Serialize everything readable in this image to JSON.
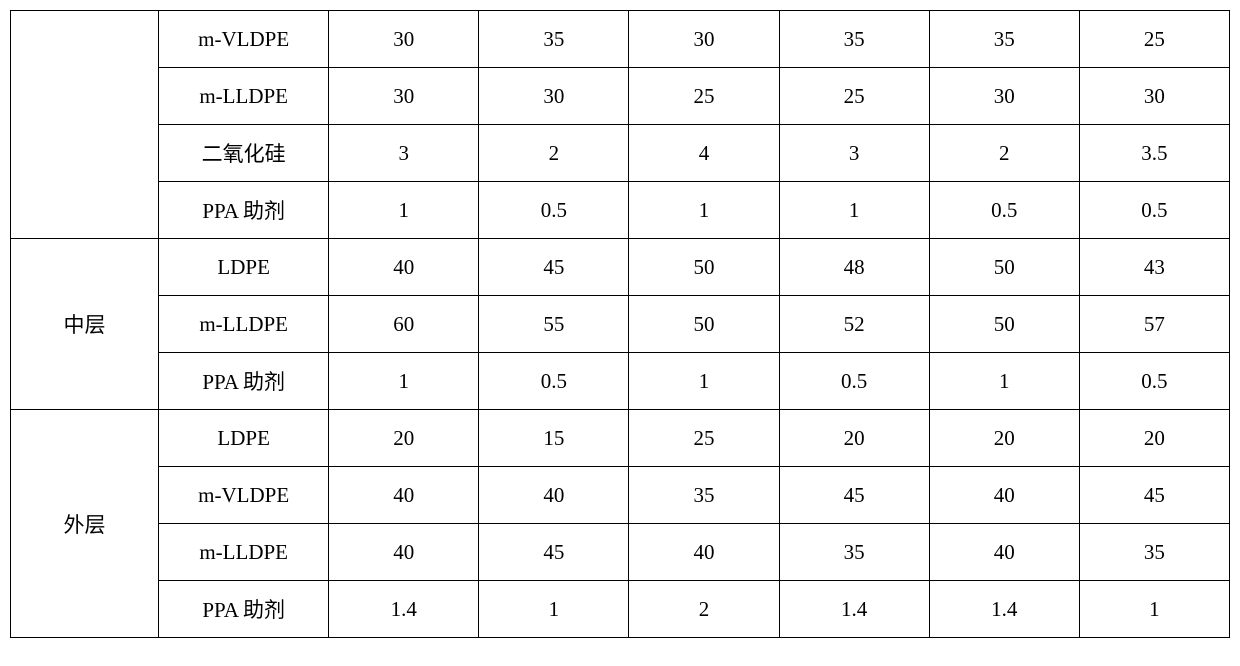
{
  "table": {
    "columns": [
      "group",
      "label",
      "c1",
      "c2",
      "c3",
      "c4",
      "c5",
      "c6"
    ],
    "col_widths": {
      "group": 148,
      "label": 170,
      "data": 150
    },
    "font_size": 21,
    "border_color": "#000000",
    "background_color": "#ffffff",
    "text_color": "#000000",
    "rows": [
      {
        "group": "",
        "group_rowspan": 4,
        "show_group": true,
        "label": "m-VLDPE",
        "c1": "30",
        "c2": "35",
        "c3": "30",
        "c4": "35",
        "c5": "35",
        "c6": "25"
      },
      {
        "group": "",
        "group_rowspan": 0,
        "show_group": false,
        "label": "m-LLDPE",
        "c1": "30",
        "c2": "30",
        "c3": "25",
        "c4": "25",
        "c5": "30",
        "c6": "30"
      },
      {
        "group": "",
        "group_rowspan": 0,
        "show_group": false,
        "label": "二氧化硅",
        "c1": "3",
        "c2": "2",
        "c3": "4",
        "c4": "3",
        "c5": "2",
        "c6": "3.5"
      },
      {
        "group": "",
        "group_rowspan": 0,
        "show_group": false,
        "label": "PPA 助剂",
        "c1": "1",
        "c2": "0.5",
        "c3": "1",
        "c4": "1",
        "c5": "0.5",
        "c6": "0.5"
      },
      {
        "group": "中层",
        "group_rowspan": 3,
        "show_group": true,
        "label": "LDPE",
        "c1": "40",
        "c2": "45",
        "c3": "50",
        "c4": "48",
        "c5": "50",
        "c6": "43"
      },
      {
        "group": "中层",
        "group_rowspan": 0,
        "show_group": false,
        "label": "m-LLDPE",
        "c1": "60",
        "c2": "55",
        "c3": "50",
        "c4": "52",
        "c5": "50",
        "c6": "57"
      },
      {
        "group": "中层",
        "group_rowspan": 0,
        "show_group": false,
        "label": "PPA 助剂",
        "c1": "1",
        "c2": "0.5",
        "c3": "1",
        "c4": "0.5",
        "c5": "1",
        "c6": "0.5"
      },
      {
        "group": "外层",
        "group_rowspan": 4,
        "show_group": true,
        "label": "LDPE",
        "c1": "20",
        "c2": "15",
        "c3": "25",
        "c4": "20",
        "c5": "20",
        "c6": "20"
      },
      {
        "group": "外层",
        "group_rowspan": 0,
        "show_group": false,
        "label": "m-VLDPE",
        "c1": "40",
        "c2": "40",
        "c3": "35",
        "c4": "45",
        "c5": "40",
        "c6": "45"
      },
      {
        "group": "外层",
        "group_rowspan": 0,
        "show_group": false,
        "label": "m-LLDPE",
        "c1": "40",
        "c2": "45",
        "c3": "40",
        "c4": "35",
        "c5": "40",
        "c6": "35"
      },
      {
        "group": "外层",
        "group_rowspan": 0,
        "show_group": false,
        "label": "PPA 助剂",
        "c1": "1.4",
        "c2": "1",
        "c3": "2",
        "c4": "1.4",
        "c5": "1.4",
        "c6": "1"
      }
    ]
  }
}
